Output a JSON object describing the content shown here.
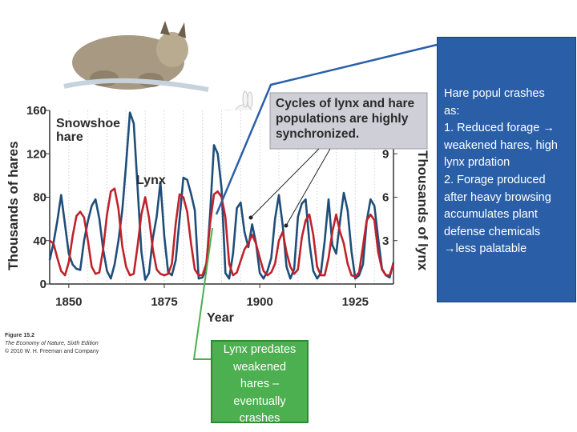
{
  "chart_data": {
    "type": "line",
    "x": [
      1845,
      1846,
      1847,
      1848,
      1849,
      1850,
      1851,
      1852,
      1853,
      1854,
      1855,
      1856,
      1857,
      1858,
      1859,
      1860,
      1861,
      1862,
      1863,
      1864,
      1865,
      1866,
      1867,
      1868,
      1869,
      1870,
      1871,
      1872,
      1873,
      1874,
      1875,
      1876,
      1877,
      1878,
      1879,
      1880,
      1881,
      1882,
      1883,
      1884,
      1885,
      1886,
      1887,
      1888,
      1889,
      1890,
      1891,
      1892,
      1893,
      1894,
      1895,
      1896,
      1897,
      1898,
      1899,
      1900,
      1901,
      1902,
      1903,
      1904,
      1905,
      1906,
      1907,
      1908,
      1909,
      1910,
      1911,
      1912,
      1913,
      1914,
      1915,
      1916,
      1917,
      1918,
      1919,
      1920,
      1921,
      1922,
      1923,
      1924,
      1925,
      1926,
      1927,
      1928,
      1929,
      1930,
      1931,
      1932,
      1933,
      1934,
      1935
    ],
    "series": [
      {
        "name": "Snowshoe hare",
        "axis": "left",
        "color": "#1f4e79",
        "values": [
          22,
          38,
          58,
          82,
          55,
          28,
          18,
          14,
          13,
          40,
          58,
          72,
          78,
          60,
          32,
          12,
          5,
          18,
          40,
          68,
          110,
          158,
          148,
          90,
          30,
          4,
          10,
          42,
          62,
          94,
          44,
          11,
          8,
          22,
          60,
          98,
          96,
          83,
          68,
          5,
          6,
          14,
          65,
          128,
          120,
          88,
          10,
          5,
          28,
          70,
          75,
          48,
          34,
          55,
          38,
          10,
          5,
          12,
          24,
          60,
          82,
          54,
          16,
          5,
          14,
          62,
          74,
          78,
          38,
          12,
          5,
          10,
          40,
          78,
          36,
          28,
          58,
          84,
          68,
          30,
          5,
          8,
          18,
          58,
          78,
          72,
          42,
          14,
          8,
          6,
          20
        ]
      },
      {
        "name": "Lynx",
        "axis": "right",
        "color": "#c0222c",
        "values": [
          3.0,
          2.8,
          1.8,
          0.9,
          0.6,
          1.5,
          3.3,
          4.7,
          5.0,
          4.6,
          3.0,
          1.2,
          0.7,
          0.8,
          2.4,
          4.8,
          6.4,
          6.6,
          5.2,
          2.6,
          1.2,
          0.6,
          0.7,
          2.6,
          4.8,
          6.0,
          4.6,
          2.4,
          1.0,
          0.7,
          0.6,
          0.7,
          1.4,
          4.2,
          6.2,
          6.0,
          5.0,
          2.8,
          1.0,
          0.6,
          0.6,
          1.4,
          4.2,
          6.2,
          6.4,
          6.0,
          4.6,
          1.4,
          0.6,
          0.8,
          1.6,
          2.4,
          2.8,
          3.4,
          2.8,
          1.8,
          0.9,
          0.6,
          0.8,
          1.4,
          3.0,
          3.6,
          2.2,
          1.2,
          0.7,
          1.0,
          3.2,
          4.4,
          4.8,
          3.4,
          1.2,
          0.6,
          0.6,
          1.8,
          3.6,
          4.8,
          3.6,
          2.8,
          1.4,
          0.6,
          0.5,
          0.8,
          2.6,
          4.4,
          4.8,
          4.4,
          2.2,
          1.0,
          0.6,
          0.6,
          1.4
        ]
      }
    ],
    "xlabel": "Year",
    "ylabel_left": "Thousands of hares",
    "ylabel_right": "Thousands of lynx",
    "xlim": [
      1845,
      1935
    ],
    "ylim_left": [
      0,
      160
    ],
    "ylim_right": [
      0,
      12
    ],
    "xticks": [
      "1850",
      "1875",
      "1900",
      "1925"
    ],
    "yticks_left": [
      "0",
      "40",
      "80",
      "120",
      "160"
    ],
    "yticks_right": [
      "3",
      "6",
      "9"
    ],
    "series_labels": [
      "Snowshoe hare",
      "Lynx"
    ],
    "grid": "vertical-dotted",
    "annotation": "Cycles of lynx and hare populations are highly synchronized."
  },
  "caption": {
    "figure": "Figure 15.2",
    "book": "The Economy of Nature, Sixth Edition",
    "copyright": "© 2010 W. H. Freeman and Company"
  },
  "callout_right": {
    "lines": [
      "Hare popul crashes",
      "as:",
      "1. Reduced forage →",
      "weakened hares, high",
      "lynx prdation",
      "2. Forage produced",
      "after heavy browsing",
      "accumulates plant",
      "defense chemicals",
      "→less palatable"
    ]
  },
  "callout_bottom": {
    "lines": [
      "Lynx predates",
      "weakened",
      "hares –",
      "eventually",
      "crashes"
    ]
  },
  "colors": {
    "hare": "#1f4e79",
    "lynx": "#c0222c",
    "callout_blue": "#2a5fa8",
    "callout_green": "#4caf50",
    "annotation_box": "#cfcfd8"
  }
}
